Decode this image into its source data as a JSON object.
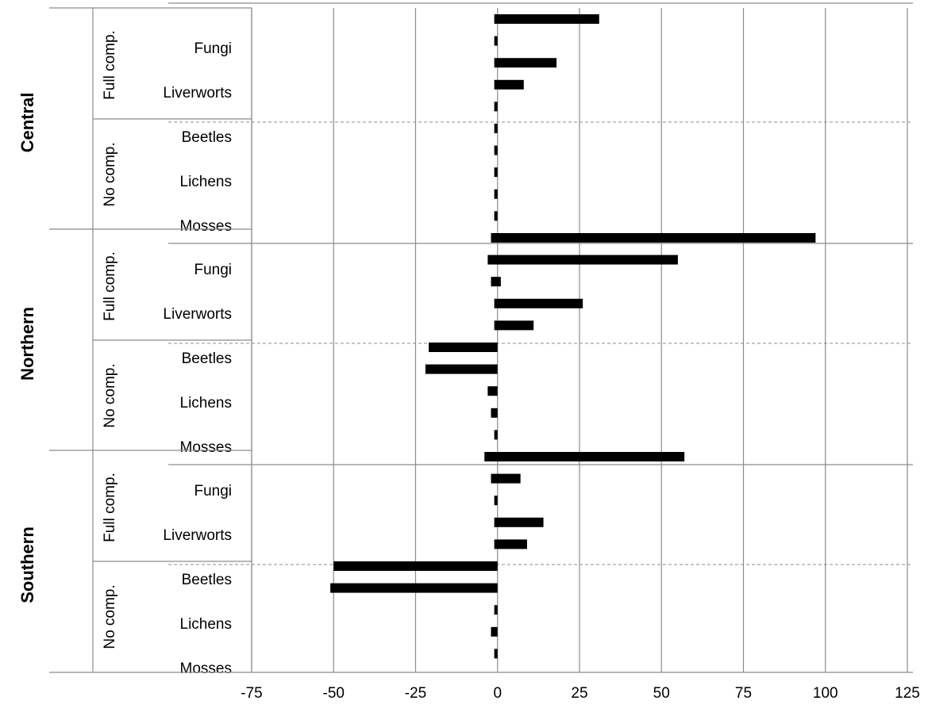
{
  "chart_data": {
    "type": "bar",
    "orientation": "horizontal",
    "xlim": [
      -75,
      125
    ],
    "x_ticks": [
      "-75",
      "-50",
      "-25",
      "0",
      "25",
      "50",
      "75",
      "100",
      "125"
    ],
    "grid": "vertical",
    "regions": [
      {
        "name": "Central",
        "groups": [
          {
            "name": "Full comp.",
            "categories": [
              "Fungi",
              "Liverworts"
            ]
          },
          {
            "name": "No comp.",
            "categories": [
              "Beetles",
              "Lichens",
              "Mosses"
            ]
          }
        ]
      },
      {
        "name": "Northern",
        "groups": [
          {
            "name": "Full comp.",
            "categories": [
              "Fungi",
              "Liverworts"
            ]
          },
          {
            "name": "No comp.",
            "categories": [
              "Beetles",
              "Lichens",
              "Mosses"
            ]
          }
        ]
      },
      {
        "name": "Southern",
        "groups": [
          {
            "name": "Full comp.",
            "categories": [
              "Fungi",
              "Liverworts"
            ]
          },
          {
            "name": "No comp.",
            "categories": [
              "Beetles",
              "Lichens",
              "Mosses"
            ]
          }
        ]
      }
    ],
    "bars": [
      [
        -1,
        31
      ],
      [
        -1,
        0
      ],
      [
        -1,
        18
      ],
      [
        -1,
        8
      ],
      [
        -1,
        0
      ],
      [
        -1,
        0
      ],
      [
        -1,
        0
      ],
      [
        -1,
        0
      ],
      [
        -1,
        0
      ],
      [
        -1,
        0
      ],
      [
        -2,
        97
      ],
      [
        -3,
        55
      ],
      [
        -2,
        1
      ],
      [
        -1,
        26
      ],
      [
        -1,
        11
      ],
      [
        -21,
        0
      ],
      [
        -22,
        0
      ],
      [
        -3,
        0
      ],
      [
        -2,
        0
      ],
      [
        -1,
        0
      ],
      [
        -4,
        57
      ],
      [
        -2,
        7
      ],
      [
        -1,
        0
      ],
      [
        -1,
        14
      ],
      [
        -1,
        9
      ],
      [
        -50,
        0
      ],
      [
        -51,
        0
      ],
      [
        -1,
        0
      ],
      [
        -2,
        0
      ],
      [
        -1,
        0
      ]
    ],
    "bar_color": "#000000"
  }
}
